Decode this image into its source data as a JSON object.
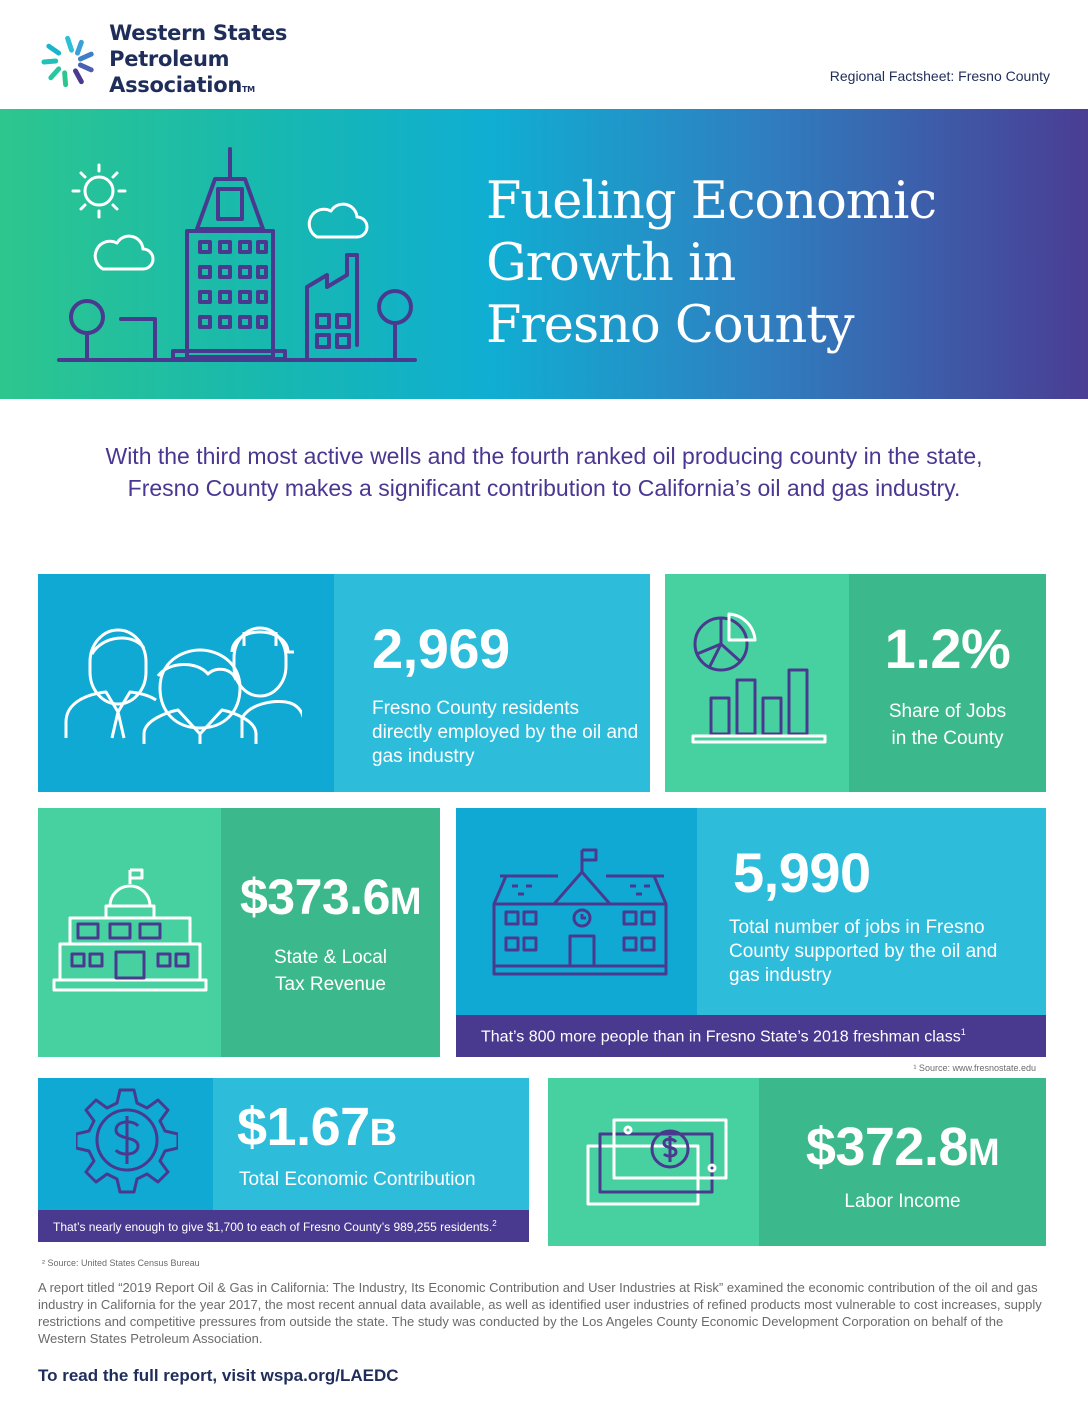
{
  "header": {
    "org_line1": "Western States",
    "org_line2": "Petroleum Association",
    "tm": "TM",
    "factsheet": "Regional Factsheet: Fresno County"
  },
  "hero": {
    "title_l1": "Fueling Economic",
    "title_l2": "Growth in",
    "title_l3": "Fresno County"
  },
  "intro": "With the third most active wells and the fourth ranked oil producing county in the state, Fresno County makes a significant contribution to California’s oil and gas industry.",
  "stats": {
    "employed": {
      "value": "2,969",
      "desc": "Fresno County residents directly employed by the oil and gas industry"
    },
    "share": {
      "value": "1.2%",
      "desc_l1": "Share of Jobs",
      "desc_l2": "in the County"
    },
    "tax": {
      "value": "$373.6",
      "unit": "M",
      "desc_l1": "State & Local",
      "desc_l2": "Tax Revenue"
    },
    "jobs": {
      "value": "5,990",
      "desc": "Total number of jobs in Fresno County supported by the oil and gas industry",
      "note": "That’s 800 more people than in Fresno State’s 2018 freshman class",
      "note_sup": "1",
      "source": "¹ Source: www.fresnostate.edu"
    },
    "contribution": {
      "value": "$1.67",
      "unit": "B",
      "desc": "Total Economic Contribution",
      "note": "That’s nearly enough to give $1,700 to each of Fresno County’s 989,255 residents.",
      "note_sup": "2",
      "source": "² Source: United States Census Bureau"
    },
    "labor": {
      "value": "$372.8",
      "unit": "M",
      "desc": "Labor Income"
    }
  },
  "footer": {
    "paragraph": "A report titled “2019 Report Oil & Gas in California: The Industry, Its Economic Contribution and User Industries at Risk” examined the economic contribution of the oil and gas industry in California for the year 2017, the most recent annual data available, as well as identified user industries of refined products most vulnerable to cost increases, supply restrictions and competitive pressures from outside the state. The study was conducted by the Los Angeles County Economic Development Corporation on behalf of the Western States Petroleum Association.",
    "cta": "To read the full report, visit wspa.org/LAEDC"
  },
  "colors": {
    "navy": "#1f2d5a",
    "purple": "#4a3a8f",
    "cyan_dark": "#0fa9d3",
    "cyan_light": "#2ebcdb",
    "green_light": "#48d1a0",
    "green_dark": "#3cb88d"
  },
  "icons": [
    "wspa-logo-icon",
    "sun-icon",
    "cloud-icon",
    "city-skyline-icon",
    "workers-icon",
    "chart-icon",
    "capitol-icon",
    "school-icon",
    "dollar-gear-icon",
    "money-stack-icon"
  ]
}
